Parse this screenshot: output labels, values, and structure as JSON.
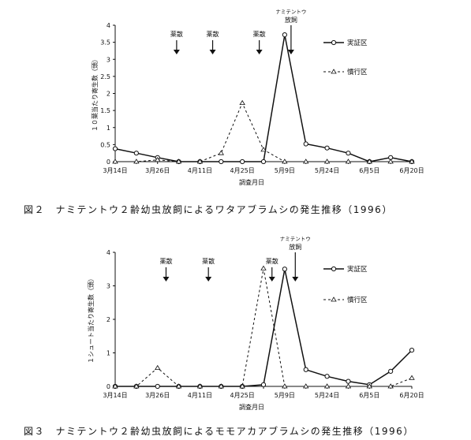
{
  "chart_data": [
    {
      "type": "line",
      "caption": "図２　ナミテントウ２齢幼虫放飼によるワタアブラムシの発生推移（1996）",
      "ylabel": "１０葉当たり寄生数（頭）",
      "xlabel": "調査月日",
      "ylim": [
        0,
        4
      ],
      "yticks": [
        "0",
        "0.5",
        "1",
        "1.5",
        "2",
        "2.5",
        "3",
        "3.5",
        "4"
      ],
      "categories": [
        "3月14日",
        "",
        "3月26日",
        "",
        "4月11日",
        "",
        "4月25日",
        "",
        "5月9日",
        "",
        "5月24日",
        "",
        "6月5日",
        "",
        "6月20日"
      ],
      "series": [
        {
          "name": "実証区",
          "style": "solid-circle",
          "values": [
            0.38,
            0.25,
            0.12,
            0.0,
            0.0,
            0.0,
            0.0,
            0.0,
            3.72,
            0.52,
            0.4,
            0.25,
            0.0,
            0.12,
            0.0
          ]
        },
        {
          "name": "慣行区",
          "style": "dashed-triangle",
          "values": [
            0.0,
            0.0,
            0.05,
            0.0,
            0.0,
            0.25,
            1.72,
            0.35,
            0.0,
            0.0,
            0.0,
            0.0,
            0.0,
            0.0,
            0.0
          ]
        }
      ],
      "annotations": [
        {
          "text": "薬散",
          "at": 2.9
        },
        {
          "text": "薬散",
          "at": 4.6
        },
        {
          "text": "薬散",
          "at": 6.8
        },
        {
          "text1": "ナミテントウ",
          "text2": "放飼",
          "at": 8.3
        }
      ]
    },
    {
      "type": "line",
      "caption": "図３　ナミテントウ２齢幼虫放飼によるモモアカアブラムシの発生推移（1996）",
      "ylabel": "１シュート当たり寄生数（頭）",
      "xlabel": "調査月日",
      "ylim": [
        0,
        4
      ],
      "yticks": [
        "0",
        "1",
        "2",
        "3",
        "4"
      ],
      "categories": [
        "3月14日",
        "",
        "3月26日",
        "",
        "4月11日",
        "",
        "4月25日",
        "",
        "5月9日",
        "",
        "5月24日",
        "",
        "6月5日",
        "",
        "6月20日"
      ],
      "series": [
        {
          "name": "実証区",
          "style": "solid-circle",
          "values": [
            0.0,
            0.0,
            0.0,
            0.0,
            0.0,
            0.0,
            0.0,
            0.05,
            3.5,
            0.5,
            0.3,
            0.15,
            0.05,
            0.45,
            1.08
          ]
        },
        {
          "name": "慣行区",
          "style": "dashed-triangle",
          "values": [
            0.0,
            0.0,
            0.55,
            0.0,
            0.0,
            0.0,
            0.0,
            3.52,
            0.0,
            0.0,
            0.0,
            0.0,
            0.0,
            0.0,
            0.25
          ]
        }
      ],
      "annotations": [
        {
          "text": "薬散",
          "at": 2.4
        },
        {
          "text": "薬散",
          "at": 4.4
        },
        {
          "text": "薬散",
          "at": 7.4
        },
        {
          "text1": "ナミテントウ",
          "text2": "放飼",
          "at": 8.5
        }
      ]
    }
  ]
}
